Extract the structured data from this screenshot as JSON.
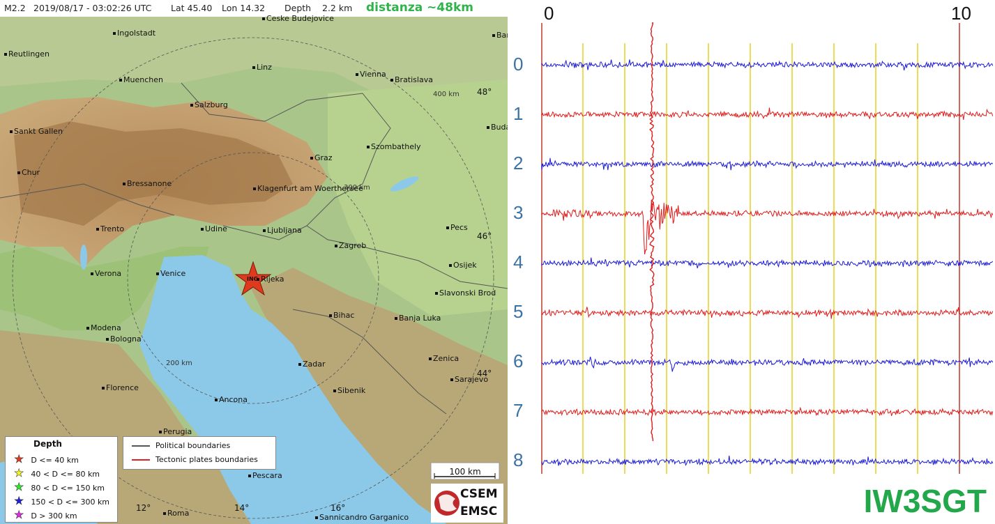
{
  "header": {
    "magnitude": "M2.2",
    "datetime": "2019/08/17 - 03:02:26 UTC",
    "lat": "Lat 45.40",
    "lon": "Lon 14.32",
    "depth": "Depth",
    "depth_value": "2.2 km",
    "distance": "distanza ~48km"
  },
  "map": {
    "cities": [
      {
        "name": "Ingolstadt"
      },
      {
        "name": "Reutlingen"
      },
      {
        "name": "Muenchen"
      },
      {
        "name": "Linz"
      },
      {
        "name": "Vienna"
      },
      {
        "name": "Bratislava"
      },
      {
        "name": "Salzburg"
      },
      {
        "name": "Sankt Gallen"
      },
      {
        "name": "Buda"
      },
      {
        "name": "Szombathely"
      },
      {
        "name": "Graz"
      },
      {
        "name": "Chur"
      },
      {
        "name": "Bressanone"
      },
      {
        "name": "Klagenfurt am Woerthersee"
      },
      {
        "name": "Trento"
      },
      {
        "name": "Udine"
      },
      {
        "name": "Ljubljana"
      },
      {
        "name": "Pecs"
      },
      {
        "name": "Zagreb"
      },
      {
        "name": "Verona"
      },
      {
        "name": "Venice"
      },
      {
        "name": "Rijeka"
      },
      {
        "name": "Osijek"
      },
      {
        "name": "Slavonski Brod"
      },
      {
        "name": "Bihac"
      },
      {
        "name": "Banja Luka"
      },
      {
        "name": "Modena"
      },
      {
        "name": "Bologna"
      },
      {
        "name": "Zadar"
      },
      {
        "name": "Zenica"
      },
      {
        "name": "Florence"
      },
      {
        "name": "Sibenik"
      },
      {
        "name": "Sarajevo"
      },
      {
        "name": "Ancona"
      },
      {
        "name": "Perugia"
      },
      {
        "name": "Pescara"
      },
      {
        "name": "Roma"
      },
      {
        "name": "Sannicandro Garganico"
      },
      {
        "name": "Bar"
      },
      {
        "name": "Ceske Budejovice"
      }
    ],
    "ring_labels": [
      "400 km",
      "300 km",
      "200 km"
    ],
    "lat_labels": [
      "48°",
      "46°",
      "44°"
    ],
    "lon_labels": [
      "12°",
      "14°",
      "16°"
    ],
    "epicenter_label": "ING",
    "scale_label": "100 km",
    "logo_top": "CSEM",
    "logo_bottom": "EMSC"
  },
  "legend_depth": {
    "title": "Depth",
    "items": [
      {
        "label": "D <= 40 km",
        "color": "#e03a1e"
      },
      {
        "label": "40 < D <= 80 km",
        "color": "#f3f324"
      },
      {
        "label": "80 < D <= 150 km",
        "color": "#2ee82e"
      },
      {
        "label": "150 < D <= 300 km",
        "color": "#1f1fe0"
      },
      {
        "label": "D > 300 km",
        "color": "#e028e0"
      }
    ]
  },
  "legend_boundaries": {
    "items": [
      {
        "label": "Political boundaries",
        "color": "#555555"
      },
      {
        "label": "Tectonic plates boundaries",
        "color": "#e02020"
      }
    ]
  },
  "seismogram": {
    "start_label": "0",
    "end_label": "10",
    "rows": [
      "0",
      "1",
      "2",
      "3",
      "4",
      "5",
      "6",
      "7",
      "8"
    ],
    "trace_colors": [
      "#1a1ad6",
      "#e01a1a"
    ],
    "grid_color": "#e8d020",
    "marker_color": "#c0392b",
    "station": "IW3SGT"
  }
}
